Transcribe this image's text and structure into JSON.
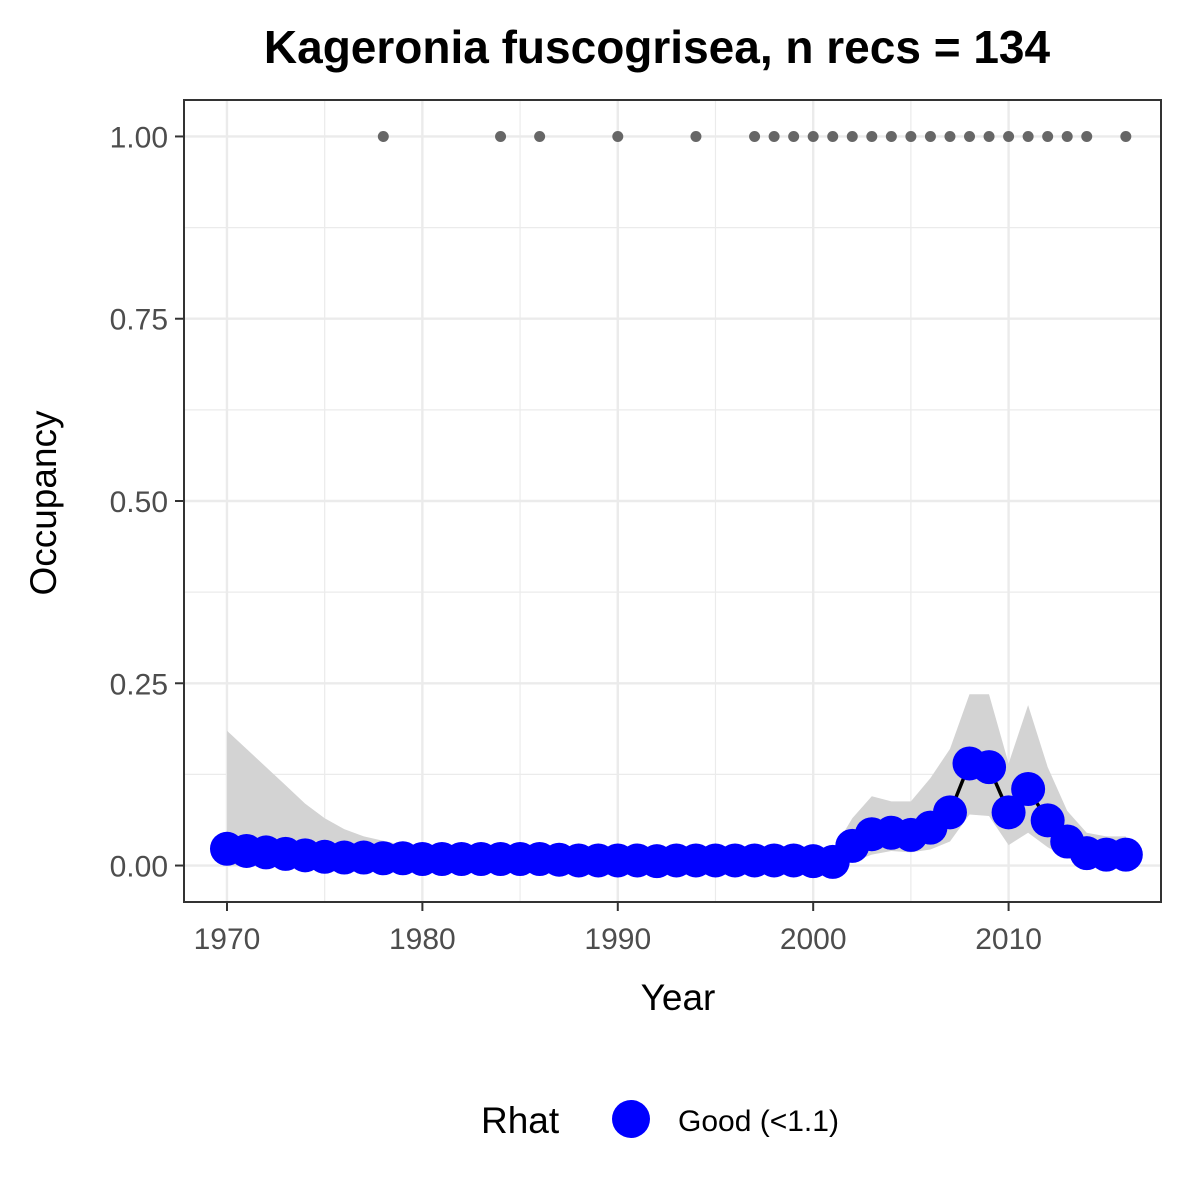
{
  "chart_data": {
    "type": "line",
    "title": "Kageronia fuscogrisea, n recs = 134",
    "xlabel": "Year",
    "ylabel": "Occupancy",
    "xlim": [
      1967.8,
      2017.8
    ],
    "ylim": [
      -0.05,
      1.05
    ],
    "xticks": [
      1970,
      1980,
      1990,
      2000,
      2010
    ],
    "xtick_labels": [
      "1970",
      "1980",
      "1990",
      "2000",
      "2010"
    ],
    "yticks": [
      0,
      0.25,
      0.5,
      0.75,
      1.0
    ],
    "ytick_labels": [
      "0.00",
      "0.25",
      "0.50",
      "0.75",
      "1.00"
    ],
    "grid": true,
    "legend": {
      "title": "Rhat",
      "position": "bottom",
      "entries": [
        {
          "label": "Good (<1.1)",
          "color": "#0000ff"
        }
      ]
    },
    "colors": {
      "points": "#0000ff",
      "line": "#000000",
      "ribbon": "#d3d3d3",
      "records": "#666666",
      "grid": "#ebebeb",
      "panel_border": "#333333"
    },
    "series": [
      {
        "name": "Good (<1.1)",
        "x": [
          1970,
          1971,
          1972,
          1973,
          1974,
          1975,
          1976,
          1977,
          1978,
          1979,
          1980,
          1981,
          1982,
          1983,
          1984,
          1985,
          1986,
          1987,
          1988,
          1989,
          1990,
          1991,
          1992,
          1993,
          1994,
          1995,
          1996,
          1997,
          1998,
          1999,
          2000,
          2001,
          2002,
          2003,
          2004,
          2005,
          2006,
          2007,
          2008,
          2009,
          2010,
          2011,
          2012,
          2013,
          2014,
          2015,
          2016
        ],
        "y": [
          0.023,
          0.02,
          0.018,
          0.016,
          0.014,
          0.012,
          0.011,
          0.011,
          0.01,
          0.01,
          0.009,
          0.009,
          0.009,
          0.009,
          0.009,
          0.009,
          0.009,
          0.008,
          0.007,
          0.007,
          0.007,
          0.007,
          0.006,
          0.007,
          0.007,
          0.007,
          0.007,
          0.007,
          0.007,
          0.007,
          0.006,
          0.005,
          0.027,
          0.043,
          0.045,
          0.042,
          0.052,
          0.073,
          0.14,
          0.135,
          0.073,
          0.105,
          0.062,
          0.033,
          0.017,
          0.015,
          0.015
        ],
        "lower": [
          0.0,
          0.0,
          0.0,
          0.0,
          0.0,
          0.0,
          0.0,
          0.0,
          0.0,
          0.0,
          0.0,
          0.0,
          0.0,
          0.0,
          0.0,
          0.0,
          0.0,
          0.0,
          0.0,
          0.0,
          0.0,
          0.0,
          0.0,
          0.0,
          0.0,
          0.0,
          0.0,
          0.0,
          0.0,
          0.0,
          0.0,
          0.0,
          0.005,
          0.015,
          0.02,
          0.018,
          0.022,
          0.033,
          0.07,
          0.068,
          0.028,
          0.045,
          0.025,
          0.01,
          0.003,
          0.003,
          0.003
        ],
        "upper": [
          0.185,
          0.16,
          0.135,
          0.11,
          0.085,
          0.065,
          0.05,
          0.04,
          0.034,
          0.028,
          0.024,
          0.022,
          0.021,
          0.02,
          0.02,
          0.02,
          0.02,
          0.019,
          0.018,
          0.018,
          0.018,
          0.018,
          0.018,
          0.018,
          0.018,
          0.018,
          0.018,
          0.018,
          0.018,
          0.018,
          0.018,
          0.02,
          0.065,
          0.095,
          0.088,
          0.088,
          0.12,
          0.16,
          0.235,
          0.235,
          0.14,
          0.22,
          0.135,
          0.075,
          0.045,
          0.04,
          0.04
        ]
      }
    ],
    "records": {
      "x": [
        1978,
        1984,
        1986,
        1990,
        1994,
        1997,
        1998,
        1999,
        2000,
        2001,
        2002,
        2003,
        2004,
        2005,
        2006,
        2007,
        2008,
        2009,
        2010,
        2011,
        2012,
        2013,
        2014,
        2016
      ],
      "y": 1.0
    }
  }
}
